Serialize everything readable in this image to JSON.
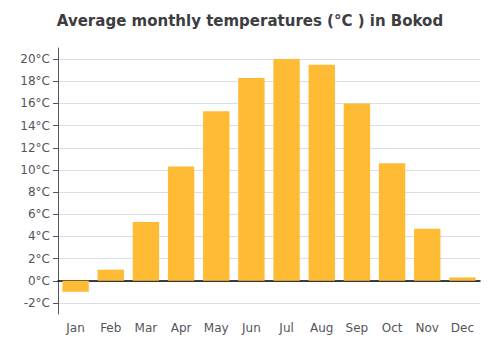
{
  "chart_data": {
    "type": "bar",
    "title": "Average monthly temperatures (°C ) in Bokod",
    "categories": [
      "Jan",
      "Feb",
      "Mar",
      "Apr",
      "May",
      "Jun",
      "Jul",
      "Aug",
      "Sep",
      "Oct",
      "Nov",
      "Dec"
    ],
    "values": [
      -1.0,
      1.0,
      5.3,
      10.3,
      15.3,
      18.3,
      20.0,
      19.5,
      16.0,
      10.6,
      4.7,
      0.3
    ],
    "color": "#FFBB33",
    "ylim": [
      -3,
      21
    ],
    "yticks": [
      {
        "value": -2,
        "label": "-2°C"
      },
      {
        "value": 0,
        "label": "0°C"
      },
      {
        "value": 2,
        "label": "2°C"
      },
      {
        "value": 4,
        "label": "4°C"
      },
      {
        "value": 6,
        "label": "6°C"
      },
      {
        "value": 8,
        "label": "8°C"
      },
      {
        "value": 10,
        "label": "10°C"
      },
      {
        "value": 12,
        "label": "12°C"
      },
      {
        "value": 14,
        "label": "14°C"
      },
      {
        "value": 16,
        "label": "16°C"
      },
      {
        "value": 18,
        "label": "18°C"
      },
      {
        "value": 20,
        "label": "20°C"
      }
    ],
    "grid": true
  }
}
